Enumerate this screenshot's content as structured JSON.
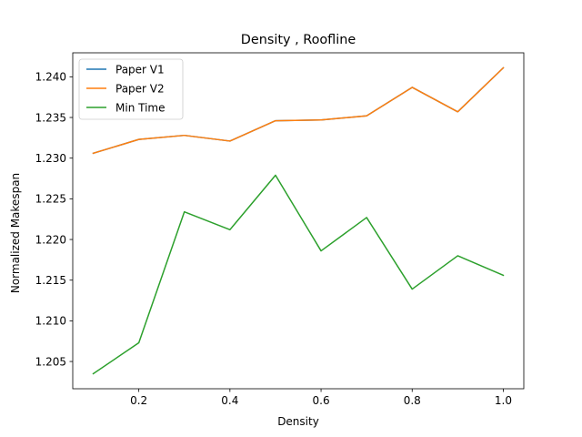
{
  "chart_data": {
    "type": "line",
    "title": "Density , Roofline",
    "xlabel": "Density",
    "ylabel": "Normalized Makespan",
    "xlim": [
      0.055,
      1.045
    ],
    "ylim": [
      1.20165,
      1.24295
    ],
    "xticks": [
      0.2,
      0.4,
      0.6,
      0.8,
      1.0
    ],
    "xtick_labels": [
      "0.2",
      "0.4",
      "0.6",
      "0.8",
      "1.0"
    ],
    "yticks": [
      1.205,
      1.21,
      1.215,
      1.22,
      1.225,
      1.23,
      1.235,
      1.24
    ],
    "ytick_labels": [
      "1.205",
      "1.210",
      "1.215",
      "1.220",
      "1.225",
      "1.230",
      "1.235",
      "1.240"
    ],
    "grid": false,
    "legend_position": "upper left",
    "x": [
      0.1,
      0.2,
      0.3,
      0.4,
      0.5,
      0.6,
      0.7,
      0.8,
      0.9,
      1.0
    ],
    "series": [
      {
        "name": "Paper V1",
        "color": "#1f77b4",
        "values": [
          1.2306,
          1.2323,
          1.2328,
          1.2321,
          1.2346,
          1.2347,
          1.2352,
          1.2387,
          1.2357,
          1.2411
        ]
      },
      {
        "name": "Paper V2",
        "color": "#ff7f0e",
        "values": [
          1.2306,
          1.2323,
          1.2328,
          1.2321,
          1.2346,
          1.2347,
          1.2352,
          1.2387,
          1.2357,
          1.2411
        ]
      },
      {
        "name": "Min Time",
        "color": "#2ca02c",
        "values": [
          1.2035,
          1.2073,
          1.2234,
          1.2212,
          1.2279,
          1.2186,
          1.2227,
          1.2139,
          1.218,
          1.2156
        ]
      }
    ]
  }
}
